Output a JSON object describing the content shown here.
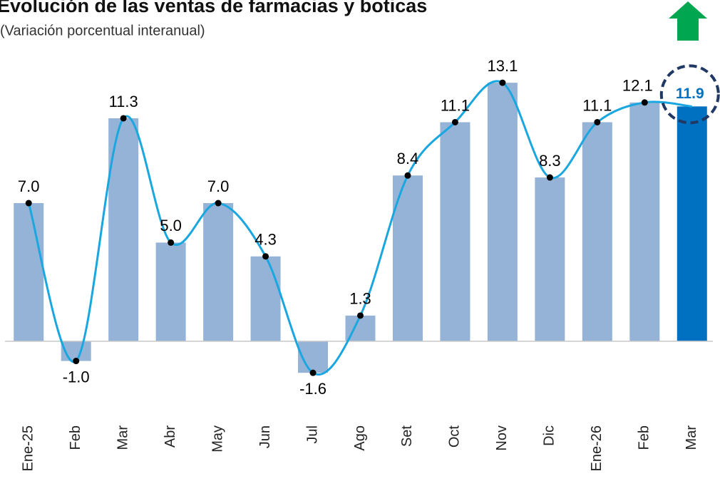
{
  "chart_data": {
    "type": "bar-line",
    "title": "Evolución de las ventas de farmacias y boticas",
    "subtitle": "(Variación porcentual interanual)",
    "categories": [
      "Ene-25",
      "Feb",
      "Mar",
      "Abr",
      "May",
      "Jun",
      "Jul",
      "Ago",
      "Set",
      "Oct",
      "Nov",
      "Dic",
      "Ene-26",
      "Feb",
      "Mar"
    ],
    "values": [
      7,
      -1,
      11.3,
      5,
      7,
      4.3,
      -1.6,
      1.3,
      8.4,
      11.1,
      13.1,
      8.3,
      11.1,
      12.1,
      11.9
    ],
    "value_labels": [
      "7.0",
      "-1.0",
      "11.3",
      "5.0",
      "7.0",
      "4.3",
      "-1.6",
      "1.3",
      "8.4",
      "11.1",
      "13.1",
      "8.3",
      "11.1",
      "12.1",
      "11.9"
    ],
    "color": "#95b3d7",
    "highlight_color": "#0070c0",
    "line_color": "#1aa7e0",
    "ylim": [
      -6,
      15
    ]
  }
}
